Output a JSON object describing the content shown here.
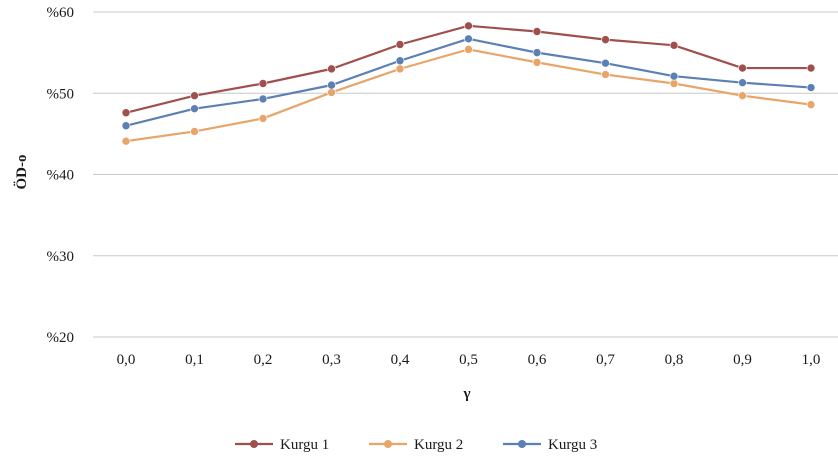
{
  "chart_data": {
    "type": "line",
    "title": "",
    "xlabel": "γ",
    "ylabel": "ÖD-o",
    "categories": [
      "0,0",
      "0,1",
      "0,2",
      "0,3",
      "0,4",
      "0,5",
      "0,6",
      "0,7",
      "0,8",
      "0,9",
      "1,0"
    ],
    "y_ticks": [
      "%20",
      "%30",
      "%40",
      "%50",
      "%60"
    ],
    "ylim": [
      20,
      60
    ],
    "grid": true,
    "legend_position": "bottom",
    "series": [
      {
        "name": "Kurgu 1",
        "color": "#A0504C",
        "values": [
          47.6,
          49.7,
          51.2,
          53.0,
          56.0,
          58.3,
          57.6,
          56.6,
          55.9,
          53.1,
          53.1
        ]
      },
      {
        "name": "Kurgu 2",
        "color": "#E8A569",
        "values": [
          44.1,
          45.3,
          46.9,
          50.1,
          53.0,
          55.4,
          53.8,
          52.3,
          51.2,
          49.7,
          48.6
        ]
      },
      {
        "name": "Kurgu 3",
        "color": "#5B80B3",
        "values": [
          46.0,
          48.1,
          49.3,
          51.0,
          54.0,
          56.7,
          55.0,
          53.7,
          52.1,
          51.3,
          50.7
        ]
      }
    ]
  }
}
